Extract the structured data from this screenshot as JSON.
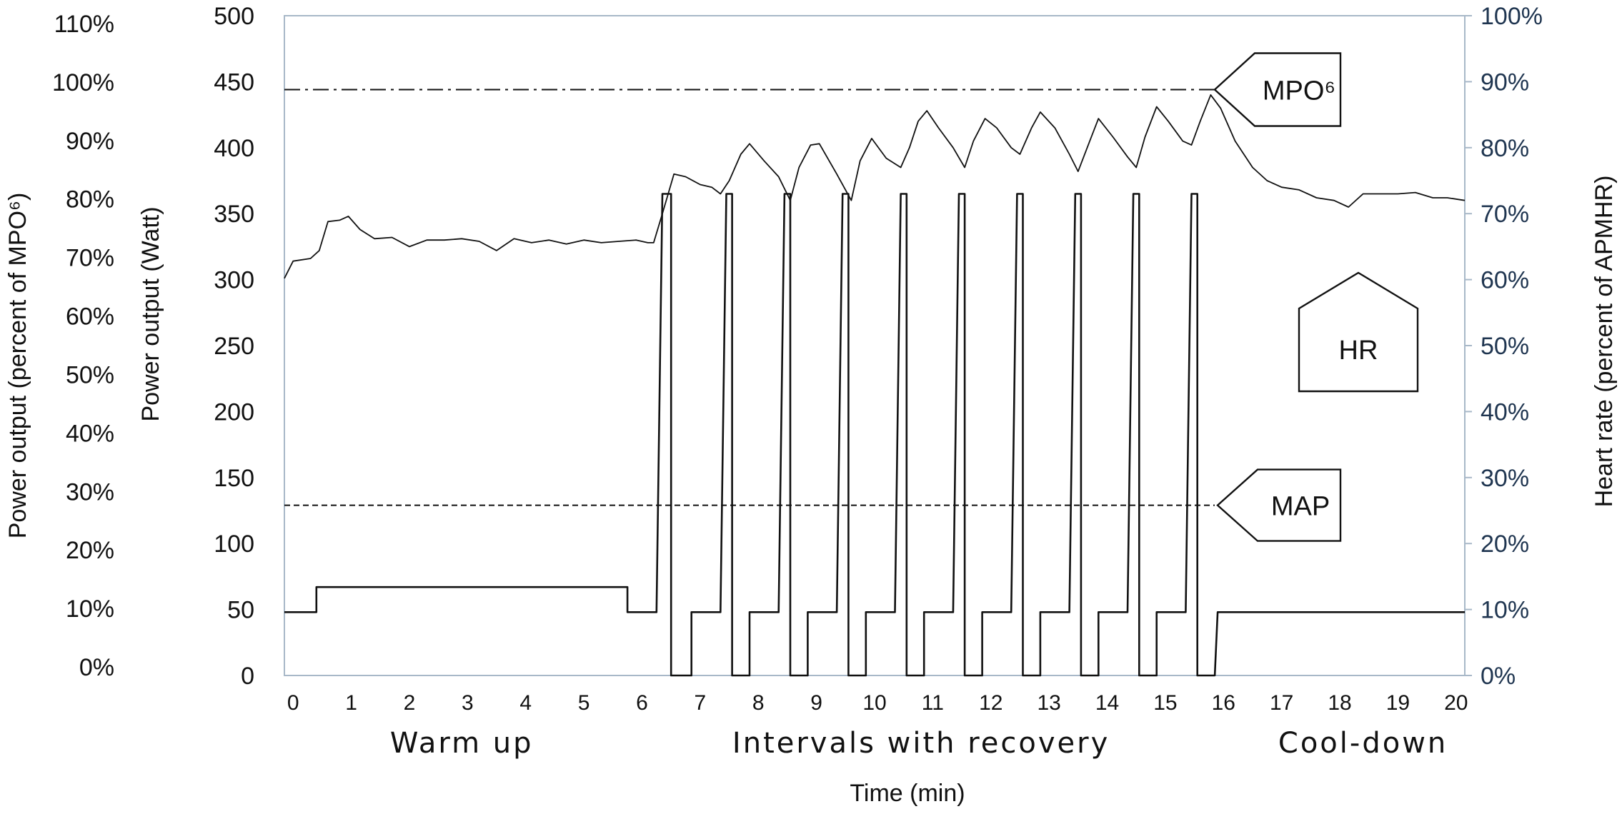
{
  "chart_data": {
    "type": "line",
    "xlabel": "Time (min)",
    "ylabel_left_outer": "Power output (percent of MPO⁶)",
    "ylabel_left_inner": "Power output (Watt)",
    "ylabel_right": "Heart rate (percent of APMHR)",
    "x_ticks": [
      "0",
      "1",
      "2",
      "3",
      "4",
      "5",
      "6",
      "7",
      "8",
      "9",
      "10",
      "11",
      "12",
      "13",
      "14",
      "15",
      "16",
      "17",
      "18",
      "19",
      "20"
    ],
    "xlim": [
      -0.15,
      20.15
    ],
    "ylim_watt": [
      0,
      500
    ],
    "watt_ticks": [
      "0",
      "50",
      "100",
      "150",
      "200",
      "250",
      "300",
      "350",
      "400",
      "450",
      "500"
    ],
    "mpo_percent_ticks": [
      "0%",
      "10%",
      "20%",
      "30%",
      "40%",
      "50%",
      "60%",
      "70%",
      "80%",
      "90%",
      "100%",
      "110%"
    ],
    "hr_percent_ticks": [
      "0%",
      "10%",
      "20%",
      "30%",
      "40%",
      "50%",
      "60%",
      "70%",
      "80%",
      "90%",
      "100%"
    ],
    "phases": [
      "Warm up",
      "Intervals with recovery",
      "Cool-down"
    ],
    "reference_lines": [
      {
        "name": "MPO⁶",
        "value_watt": 444,
        "style": "dash-dot"
      },
      {
        "name": "MAP",
        "value_watt": 129,
        "style": "dashed"
      }
    ],
    "hr_label": "HR",
    "series": [
      {
        "name": "Power output",
        "points": [
          [
            -0.15,
            48
          ],
          [
            0.4,
            48
          ],
          [
            0.4,
            67
          ],
          [
            5.75,
            67
          ],
          [
            5.75,
            48
          ],
          [
            6.25,
            48
          ],
          [
            6.35,
            365
          ],
          [
            6.5,
            365
          ],
          [
            6.5,
            0
          ],
          [
            6.85,
            0
          ],
          [
            6.85,
            48
          ],
          [
            7.35,
            48
          ],
          [
            7.45,
            365
          ],
          [
            7.55,
            365
          ],
          [
            7.55,
            0
          ],
          [
            7.85,
            0
          ],
          [
            7.85,
            48
          ],
          [
            8.35,
            48
          ],
          [
            8.45,
            365
          ],
          [
            8.55,
            365
          ],
          [
            8.55,
            0
          ],
          [
            8.85,
            0
          ],
          [
            8.85,
            48
          ],
          [
            9.35,
            48
          ],
          [
            9.45,
            365
          ],
          [
            9.55,
            365
          ],
          [
            9.55,
            0
          ],
          [
            9.85,
            0
          ],
          [
            9.85,
            48
          ],
          [
            10.35,
            48
          ],
          [
            10.45,
            365
          ],
          [
            10.55,
            365
          ],
          [
            10.55,
            0
          ],
          [
            10.85,
            0
          ],
          [
            10.85,
            48
          ],
          [
            11.35,
            48
          ],
          [
            11.45,
            365
          ],
          [
            11.55,
            365
          ],
          [
            11.55,
            0
          ],
          [
            11.85,
            0
          ],
          [
            11.85,
            48
          ],
          [
            12.35,
            48
          ],
          [
            12.45,
            365
          ],
          [
            12.55,
            365
          ],
          [
            12.55,
            0
          ],
          [
            12.85,
            0
          ],
          [
            12.85,
            48
          ],
          [
            13.35,
            48
          ],
          [
            13.45,
            365
          ],
          [
            13.55,
            365
          ],
          [
            13.55,
            0
          ],
          [
            13.85,
            0
          ],
          [
            13.85,
            48
          ],
          [
            14.35,
            48
          ],
          [
            14.45,
            365
          ],
          [
            14.55,
            365
          ],
          [
            14.55,
            0
          ],
          [
            14.85,
            0
          ],
          [
            14.85,
            48
          ],
          [
            15.35,
            48
          ],
          [
            15.45,
            365
          ],
          [
            15.55,
            365
          ],
          [
            15.55,
            0
          ],
          [
            15.85,
            0
          ],
          [
            15.9,
            48
          ],
          [
            20.15,
            48
          ]
        ]
      },
      {
        "name": "HR",
        "points": [
          [
            -0.15,
            301
          ],
          [
            0.0,
            314
          ],
          [
            0.3,
            316
          ],
          [
            0.45,
            322
          ],
          [
            0.6,
            344
          ],
          [
            0.8,
            345
          ],
          [
            0.95,
            348
          ],
          [
            1.15,
            338
          ],
          [
            1.4,
            331
          ],
          [
            1.7,
            332
          ],
          [
            2.0,
            325
          ],
          [
            2.3,
            330
          ],
          [
            2.6,
            330
          ],
          [
            2.9,
            331
          ],
          [
            3.2,
            329
          ],
          [
            3.5,
            322
          ],
          [
            3.8,
            331
          ],
          [
            4.1,
            328
          ],
          [
            4.4,
            330
          ],
          [
            4.7,
            327
          ],
          [
            5.0,
            330
          ],
          [
            5.3,
            328
          ],
          [
            5.6,
            329
          ],
          [
            5.9,
            330
          ],
          [
            6.1,
            328
          ],
          [
            6.2,
            328
          ],
          [
            6.35,
            350
          ],
          [
            6.55,
            380
          ],
          [
            6.75,
            378
          ],
          [
            7.0,
            372
          ],
          [
            7.2,
            370
          ],
          [
            7.35,
            365
          ],
          [
            7.5,
            375
          ],
          [
            7.7,
            395
          ],
          [
            7.85,
            403
          ],
          [
            8.1,
            390
          ],
          [
            8.35,
            378
          ],
          [
            8.55,
            360
          ],
          [
            8.7,
            385
          ],
          [
            8.9,
            402
          ],
          [
            9.05,
            403
          ],
          [
            9.35,
            380
          ],
          [
            9.6,
            360
          ],
          [
            9.75,
            390
          ],
          [
            9.95,
            407
          ],
          [
            10.2,
            392
          ],
          [
            10.45,
            385
          ],
          [
            10.6,
            400
          ],
          [
            10.75,
            420
          ],
          [
            10.9,
            428
          ],
          [
            11.1,
            415
          ],
          [
            11.35,
            400
          ],
          [
            11.55,
            385
          ],
          [
            11.7,
            405
          ],
          [
            11.9,
            422
          ],
          [
            12.1,
            415
          ],
          [
            12.35,
            400
          ],
          [
            12.5,
            395
          ],
          [
            12.7,
            415
          ],
          [
            12.85,
            427
          ],
          [
            13.1,
            415
          ],
          [
            13.35,
            395
          ],
          [
            13.5,
            382
          ],
          [
            13.7,
            405
          ],
          [
            13.85,
            422
          ],
          [
            14.1,
            408
          ],
          [
            14.35,
            393
          ],
          [
            14.5,
            385
          ],
          [
            14.65,
            408
          ],
          [
            14.85,
            431
          ],
          [
            15.05,
            420
          ],
          [
            15.3,
            405
          ],
          [
            15.45,
            402
          ],
          [
            15.6,
            420
          ],
          [
            15.78,
            440
          ],
          [
            15.95,
            430
          ],
          [
            16.2,
            405
          ],
          [
            16.5,
            385
          ],
          [
            16.75,
            375
          ],
          [
            17.0,
            370
          ],
          [
            17.3,
            368
          ],
          [
            17.6,
            362
          ],
          [
            17.9,
            360
          ],
          [
            18.15,
            355
          ],
          [
            18.4,
            365
          ],
          [
            18.7,
            365
          ],
          [
            19.0,
            365
          ],
          [
            19.3,
            366
          ],
          [
            19.6,
            362
          ],
          [
            19.85,
            362
          ],
          [
            20.15,
            360
          ]
        ]
      }
    ]
  }
}
